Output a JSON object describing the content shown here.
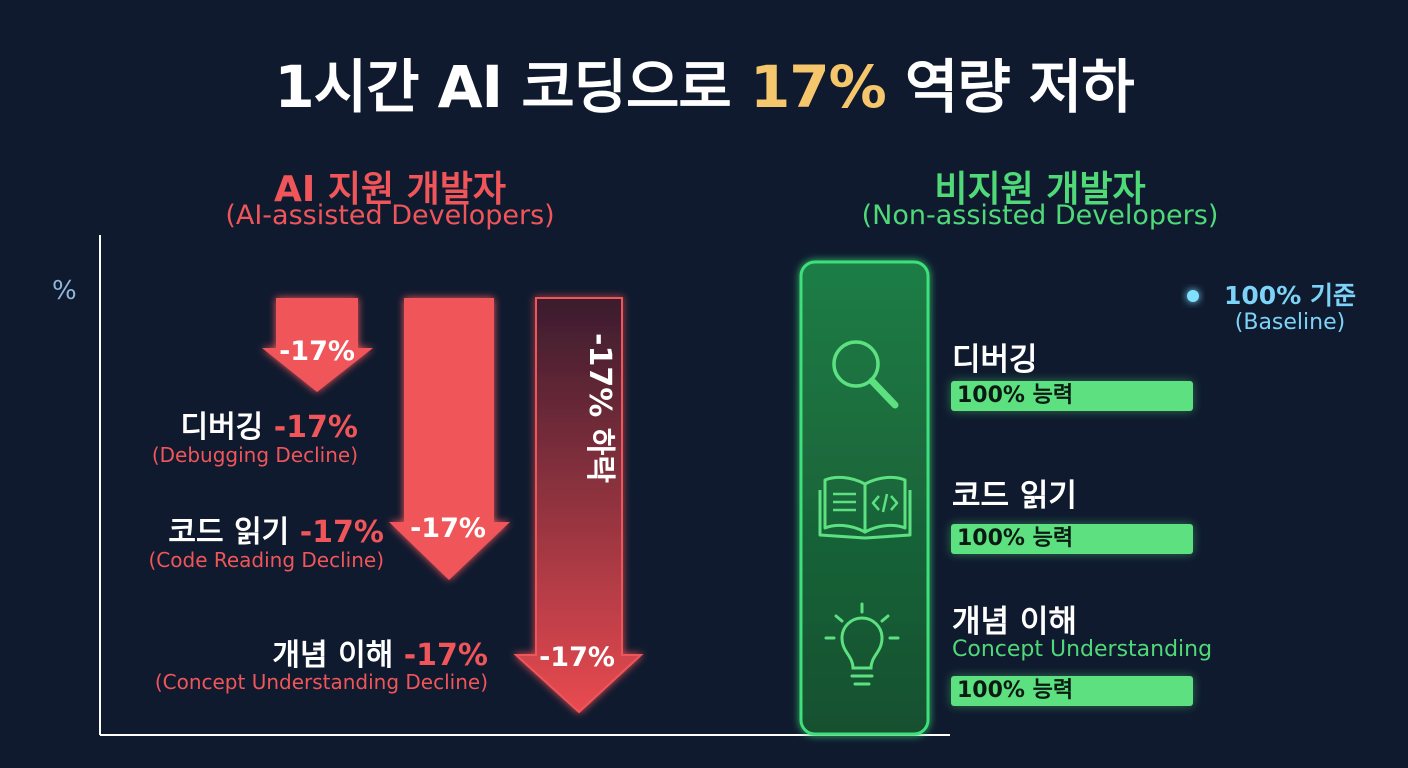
{
  "title": {
    "prefix": "1시간 AI 코딩으로 ",
    "highlight": "17%",
    "suffix": " 역량 저하"
  },
  "left_group": {
    "heading": "AI 지원 개발자",
    "subheading": "(AI-assisted Developers)"
  },
  "right_group": {
    "heading": "비지원 개발자",
    "subheading": "(Non-assisted Developers)"
  },
  "axis": {
    "y_label": "%",
    "baseline_label": "100% 기준",
    "baseline_sub": "(Baseline)"
  },
  "colors": {
    "decline": "#f0555a",
    "baseline_line": "#5fd0f5",
    "positive": "#5ce080",
    "title_highlight": "#f5c66b"
  },
  "chart_data": {
    "type": "bar",
    "baseline_value": 100,
    "categories": [
      "디버깅",
      "코드 읽기",
      "개념 이해"
    ],
    "series": [
      {
        "name": "AI 지원 개발자",
        "values": [
          -17,
          -17,
          -17
        ],
        "arrow_labels": [
          "-17%",
          "-17%",
          "-17%"
        ],
        "category_labels": [
          "디버깅",
          "코드 읽기",
          "개념 이해"
        ],
        "value_labels": [
          "-17%",
          "-17%",
          "-17%"
        ],
        "sub_labels": [
          "(Debugging Decline)",
          "(Code Reading Decline)",
          "(Concept Understanding Decline)"
        ],
        "big_arrow_label": "-17% 하락"
      },
      {
        "name": "비지원 개발자",
        "values": [
          100,
          100,
          100
        ],
        "skills": [
          {
            "label": "디버깅",
            "english": "",
            "bar_label": "100% 능력",
            "icon": "magnifier-icon"
          },
          {
            "label": "코드 읽기",
            "english": "",
            "bar_label": "100% 능력",
            "icon": "code-book-icon"
          },
          {
            "label": "개념 이해",
            "english": "Concept Understanding",
            "bar_label": "100% 능력",
            "icon": "lightbulb-icon"
          }
        ]
      }
    ]
  }
}
